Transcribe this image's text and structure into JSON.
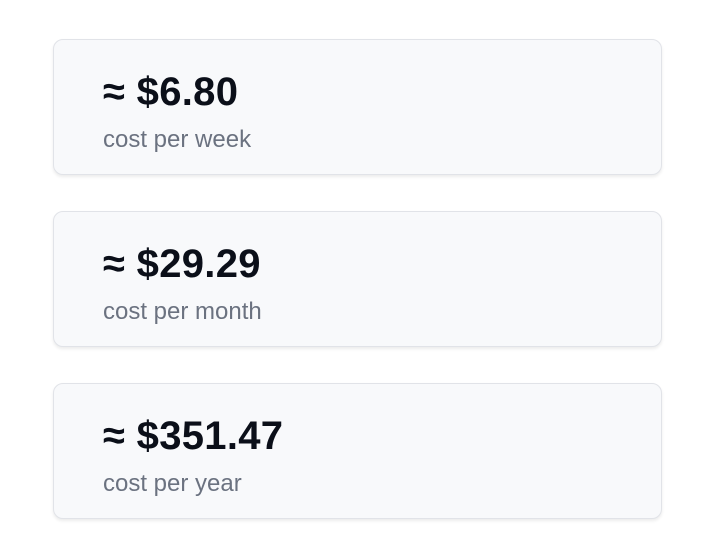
{
  "cards": [
    {
      "amount": "≈ $6.80",
      "label": "cost per week"
    },
    {
      "amount": "≈ $29.29",
      "label": "cost per month"
    },
    {
      "amount": "≈ $351.47",
      "label": "cost per year"
    }
  ]
}
